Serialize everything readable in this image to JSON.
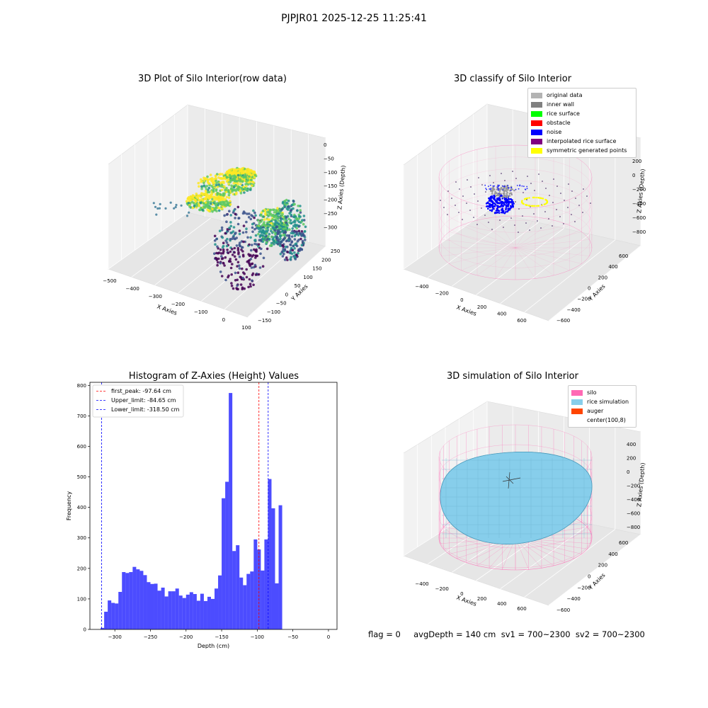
{
  "suptitle": "PJPJR01 2025-12-25 11:25:41",
  "footer": "flag = 0     avgDepth = 140 cm  sv1 = 700~2300  sv2 = 700~2300",
  "chart_data": [
    {
      "type": "scatter",
      "title": "3D Plot of Silo Interior(row data)",
      "xlabel": "X Axies",
      "ylabel": "Y Axies",
      "zlabel": "Z Axies (Depth)",
      "x_ticks": [
        "−500",
        "−400",
        "−300",
        "−200",
        "−100",
        "0",
        "100"
      ],
      "y_ticks": [
        "−150",
        "−100",
        "−50",
        "0",
        "50",
        "100",
        "150",
        "200",
        "250"
      ],
      "z_ticks": [
        "0",
        "−50",
        "−100",
        "−150",
        "−200",
        "−250",
        "−300"
      ],
      "xlim": [
        -500,
        150
      ],
      "ylim": [
        -150,
        250
      ],
      "zlim": [
        -330,
        0
      ],
      "colormap": "viridis"
    },
    {
      "type": "scatter",
      "title": "3D classify of Silo Interior",
      "xlabel": "X Axies",
      "ylabel": "Y Axies",
      "zlabel": "Z Axies (Depth)",
      "x_ticks": [
        "−400",
        "−200",
        "0",
        "200",
        "400",
        "600"
      ],
      "y_ticks": [
        "−600",
        "−400",
        "−200",
        "0",
        "200",
        "400",
        "600"
      ],
      "z_ticks": [
        "200",
        "0",
        "−200",
        "−400",
        "−600",
        "−800"
      ],
      "legend_position": "top-right",
      "legend": [
        {
          "label": "original data",
          "color": "#b3b3b3"
        },
        {
          "label": "inner wall",
          "color": "#808080"
        },
        {
          "label": "rice surface",
          "color": "#00ff00"
        },
        {
          "label": "obstacle",
          "color": "#ff0000"
        },
        {
          "label": "noise",
          "color": "#0000ff"
        },
        {
          "label": "interpolated rice surface",
          "color": "#800080"
        },
        {
          "label": "symmetric generated points",
          "color": "#ffff00"
        }
      ]
    },
    {
      "type": "bar",
      "title": "Histogram of Z-Axies (Height) Values",
      "xlabel": "Depth (cm)",
      "ylabel": "Frequency",
      "xlim": [
        -335,
        12
      ],
      "ylim": [
        0,
        810
      ],
      "x_ticks": [
        -300,
        -250,
        -200,
        -150,
        -100,
        -50,
        0
      ],
      "y_ticks": [
        0,
        100,
        200,
        300,
        400,
        500,
        600,
        700,
        800
      ],
      "bin_width": 5,
      "bins_start": [
        -325,
        -320,
        -315,
        -310,
        -305,
        -300,
        -295,
        -290,
        -285,
        -280,
        -275,
        -270,
        -265,
        -260,
        -255,
        -250,
        -245,
        -240,
        -235,
        -230,
        -225,
        -220,
        -215,
        -210,
        -205,
        -200,
        -195,
        -190,
        -185,
        -180,
        -175,
        -170,
        -165,
        -160,
        -155,
        -150,
        -145,
        -140,
        -135,
        -130,
        -125,
        -120,
        -115,
        -110,
        -105,
        -100,
        -95,
        -90,
        -85,
        -80,
        -75,
        -70,
        -65,
        -60,
        -55,
        -50,
        -45,
        -40,
        -35,
        -30,
        -25,
        -20,
        -15,
        -10,
        -5
      ],
      "values": [
        0,
        5,
        58,
        95,
        87,
        85,
        123,
        188,
        185,
        188,
        205,
        197,
        192,
        178,
        155,
        149,
        150,
        127,
        137,
        108,
        125,
        125,
        134,
        111,
        103,
        114,
        122,
        116,
        94,
        117,
        93,
        107,
        100,
        134,
        177,
        430,
        484,
        775,
        257,
        276,
        170,
        145,
        182,
        190,
        295,
        262,
        193,
        295,
        493,
        397,
        151,
        407,
        0,
        0,
        0,
        0,
        0,
        0,
        0,
        0,
        0,
        0,
        0,
        0,
        0
      ],
      "bar_color": "#0000ff",
      "vlines": [
        {
          "label": "first_peak: -97.64 cm",
          "x": -97.64,
          "color": "#ff0000"
        },
        {
          "label": "Upper_limit: -84.65 cm",
          "x": -84.65,
          "color": "#0000ff"
        },
        {
          "label": "Lower_limit: -318.50 cm",
          "x": -318.5,
          "color": "#0000ff"
        }
      ],
      "legend_position": "top-left"
    },
    {
      "type": "area",
      "title": "3D simulation of Silo Interior",
      "xlabel": "X Axies",
      "ylabel": "Y Axies",
      "zlabel": "Z Axies (Depth)",
      "x_ticks": [
        "−400",
        "−200",
        "0",
        "200",
        "400",
        "600"
      ],
      "y_ticks": [
        "−600",
        "−400",
        "−200",
        "0",
        "200",
        "400",
        "600"
      ],
      "z_ticks": [
        "400",
        "200",
        "0",
        "−200",
        "−400",
        "−600",
        "−800"
      ],
      "legend_position": "top-right",
      "legend": [
        {
          "label": "silo",
          "color": "#ff69b4"
        },
        {
          "label": "rice simulation",
          "color": "#87ceeb"
        },
        {
          "label": "auger",
          "color": "#ff4500"
        },
        {
          "label": "center(100,8)",
          "color": "#ffffff"
        }
      ]
    }
  ]
}
